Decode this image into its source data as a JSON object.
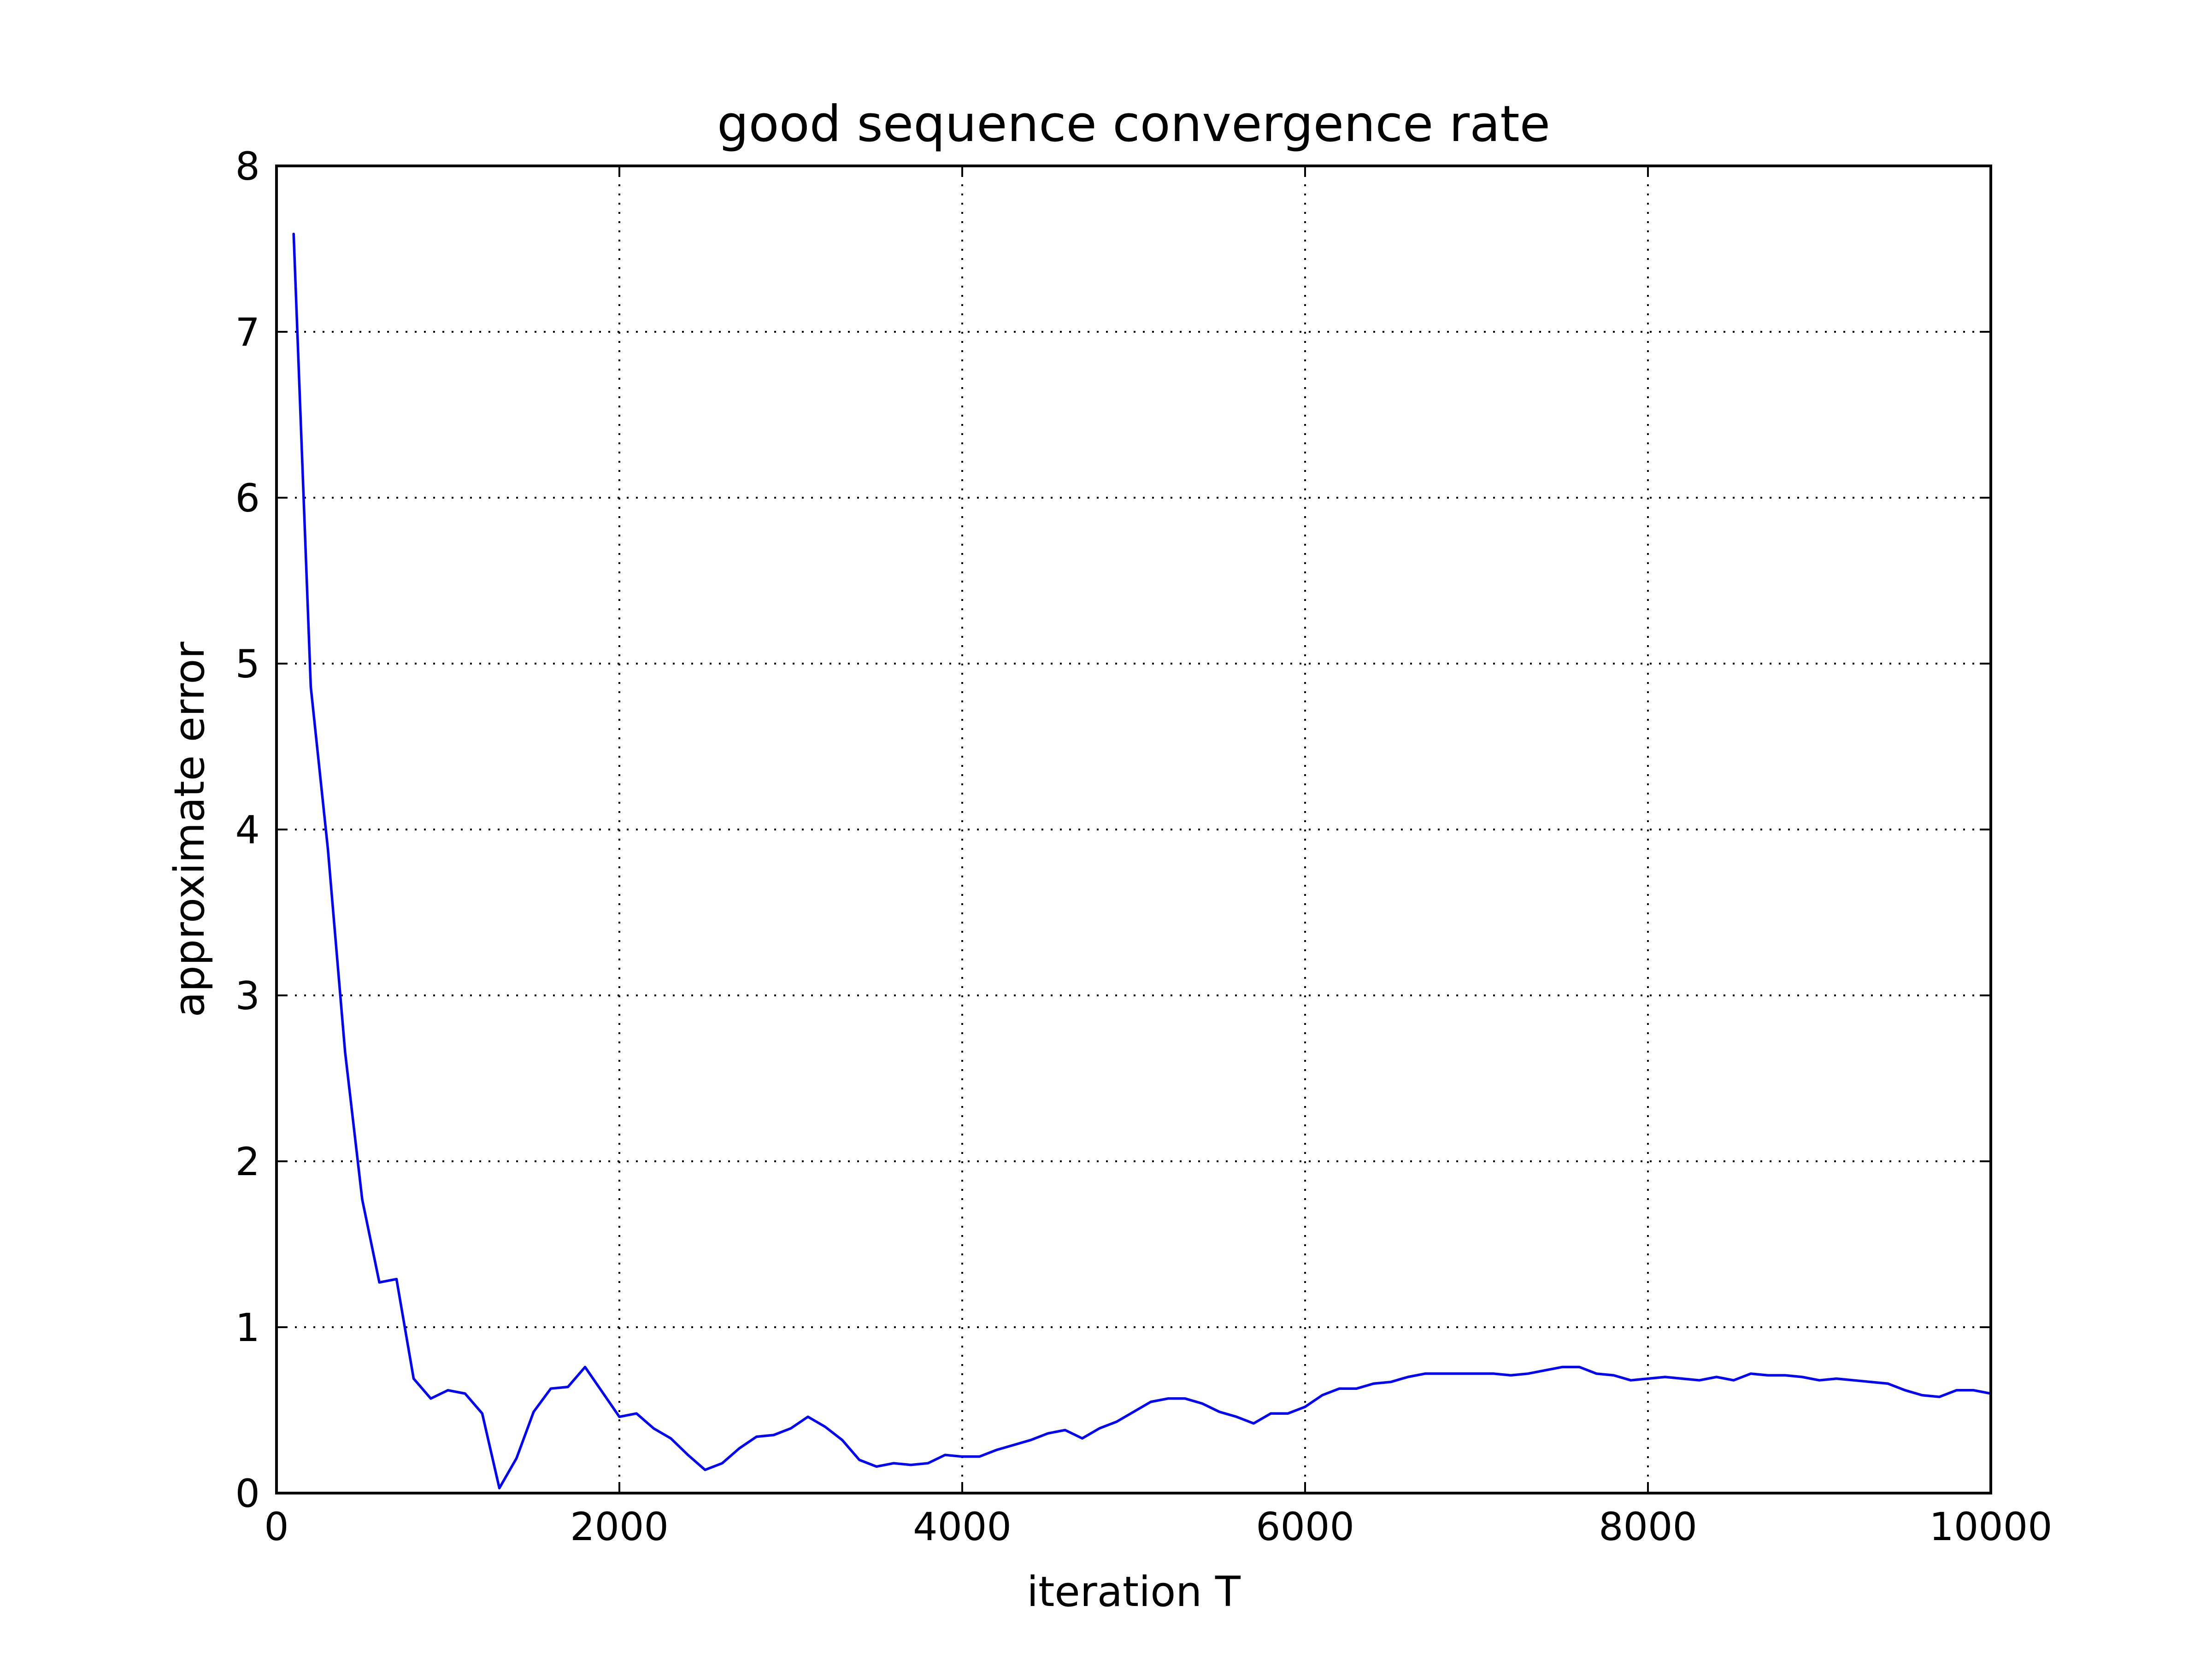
{
  "chart_data": {
    "type": "line",
    "title": "good sequence convergence rate",
    "xlabel": "iteration T",
    "ylabel": "approximate error",
    "xlim": [
      0,
      10000
    ],
    "ylim": [
      0,
      8
    ],
    "x_ticks": [
      0,
      2000,
      4000,
      6000,
      8000,
      10000
    ],
    "x_tick_labels": [
      "0",
      "2000",
      "4000",
      "6000",
      "8000",
      "10000"
    ],
    "y_ticks": [
      0,
      1,
      2,
      3,
      4,
      5,
      6,
      7,
      8
    ],
    "y_tick_labels": [
      "0",
      "1",
      "2",
      "3",
      "4",
      "5",
      "6",
      "7",
      "8"
    ],
    "grid": true,
    "legend": "none",
    "series": [
      {
        "color": "#0000ff",
        "x": [
          100,
          200,
          300,
          400,
          500,
          600,
          700,
          800,
          900,
          1000,
          1100,
          1200,
          1300,
          1400,
          1500,
          1600,
          1700,
          1800,
          1900,
          2000,
          2100,
          2200,
          2300,
          2400,
          2500,
          2600,
          2700,
          2800,
          2900,
          3000,
          3100,
          3200,
          3300,
          3400,
          3500,
          3600,
          3700,
          3800,
          3900,
          4000,
          4100,
          4200,
          4300,
          4400,
          4500,
          4600,
          4700,
          4800,
          4900,
          5000,
          5100,
          5200,
          5300,
          5400,
          5500,
          5600,
          5700,
          5800,
          5900,
          6000,
          6100,
          6200,
          6300,
          6400,
          6500,
          6600,
          6700,
          6800,
          6900,
          7000,
          7100,
          7200,
          7300,
          7400,
          7500,
          7600,
          7700,
          7800,
          7900,
          8000,
          8100,
          8200,
          8300,
          8400,
          8500,
          8600,
          8700,
          8800,
          8900,
          9000,
          9100,
          9200,
          9300,
          9400,
          9500,
          9600,
          9700,
          9800,
          9900,
          10000
        ],
        "values": [
          7.59,
          4.86,
          3.88,
          2.66,
          1.77,
          1.27,
          1.29,
          0.69,
          0.57,
          0.62,
          0.6,
          0.48,
          0.03,
          0.21,
          0.49,
          0.63,
          0.64,
          0.76,
          0.61,
          0.46,
          0.48,
          0.39,
          0.33,
          0.23,
          0.14,
          0.18,
          0.27,
          0.34,
          0.35,
          0.39,
          0.46,
          0.4,
          0.32,
          0.2,
          0.16,
          0.18,
          0.17,
          0.18,
          0.23,
          0.22,
          0.22,
          0.26,
          0.29,
          0.32,
          0.36,
          0.38,
          0.33,
          0.39,
          0.43,
          0.49,
          0.55,
          0.57,
          0.57,
          0.54,
          0.49,
          0.46,
          0.42,
          0.48,
          0.48,
          0.52,
          0.59,
          0.63,
          0.63,
          0.66,
          0.67,
          0.7,
          0.72,
          0.72,
          0.72,
          0.72,
          0.72,
          0.71,
          0.72,
          0.74,
          0.76,
          0.76,
          0.72,
          0.71,
          0.68,
          0.69,
          0.7,
          0.69,
          0.68,
          0.7,
          0.68,
          0.72,
          0.71,
          0.71,
          0.7,
          0.68,
          0.69,
          0.68,
          0.67,
          0.66,
          0.62,
          0.59,
          0.58,
          0.62,
          0.62,
          0.6
        ]
      }
    ]
  }
}
